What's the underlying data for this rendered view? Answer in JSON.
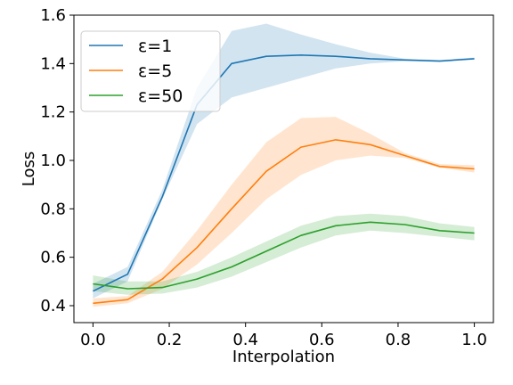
{
  "chart_data": {
    "type": "line",
    "xlabel": "Interpolation",
    "ylabel": "Loss",
    "xlim": [
      -0.05,
      1.05
    ],
    "ylim": [
      0.33,
      1.6
    ],
    "xticks": [
      0.0,
      0.2,
      0.4,
      0.6,
      0.8,
      1.0
    ],
    "xtick_labels": [
      "0.0",
      "0.2",
      "0.4",
      "0.6",
      "0.8",
      "1.0"
    ],
    "yticks": [
      0.4,
      0.6,
      0.8,
      1.0,
      1.2,
      1.4,
      1.6
    ],
    "ytick_labels": [
      "0.4",
      "0.6",
      "0.8",
      "1.0",
      "1.2",
      "1.4",
      "1.6"
    ],
    "grid": false,
    "legend_position": "top-left",
    "x": [
      0.0,
      0.0909,
      0.1818,
      0.2727,
      0.3636,
      0.4545,
      0.5455,
      0.6364,
      0.7273,
      0.8182,
      0.9091,
      1.0
    ],
    "series": [
      {
        "name": "ε=1",
        "color": "#1f77b4",
        "values": [
          0.46,
          0.53,
          0.85,
          1.23,
          1.4,
          1.43,
          1.435,
          1.43,
          1.42,
          1.415,
          1.41,
          1.42
        ],
        "lower": [
          0.43,
          0.5,
          0.84,
          1.15,
          1.26,
          1.3,
          1.34,
          1.38,
          1.4,
          1.41,
          1.41,
          1.42
        ],
        "upper": [
          0.49,
          0.56,
          0.88,
          1.3,
          1.535,
          1.565,
          1.52,
          1.48,
          1.445,
          1.42,
          1.415,
          1.425
        ]
      },
      {
        "name": "ε=5",
        "color": "#ff7f0e",
        "values": [
          0.41,
          0.425,
          0.51,
          0.64,
          0.8,
          0.955,
          1.055,
          1.085,
          1.065,
          1.02,
          0.975,
          0.965
        ],
        "lower": [
          0.395,
          0.41,
          0.47,
          0.57,
          0.7,
          0.84,
          0.94,
          1.0,
          1.02,
          1.01,
          0.97,
          0.95
        ],
        "upper": [
          0.43,
          0.44,
          0.54,
          0.71,
          0.9,
          1.075,
          1.175,
          1.18,
          1.11,
          1.03,
          0.985,
          0.98
        ]
      },
      {
        "name": "ε=50",
        "color": "#2ca02c",
        "values": [
          0.49,
          0.47,
          0.475,
          0.51,
          0.56,
          0.625,
          0.69,
          0.73,
          0.745,
          0.735,
          0.71,
          0.7
        ],
        "lower": [
          0.46,
          0.445,
          0.45,
          0.475,
          0.52,
          0.58,
          0.64,
          0.69,
          0.71,
          0.7,
          0.685,
          0.67
        ],
        "upper": [
          0.525,
          0.5,
          0.5,
          0.54,
          0.6,
          0.665,
          0.73,
          0.77,
          0.78,
          0.77,
          0.74,
          0.725
        ]
      }
    ]
  }
}
